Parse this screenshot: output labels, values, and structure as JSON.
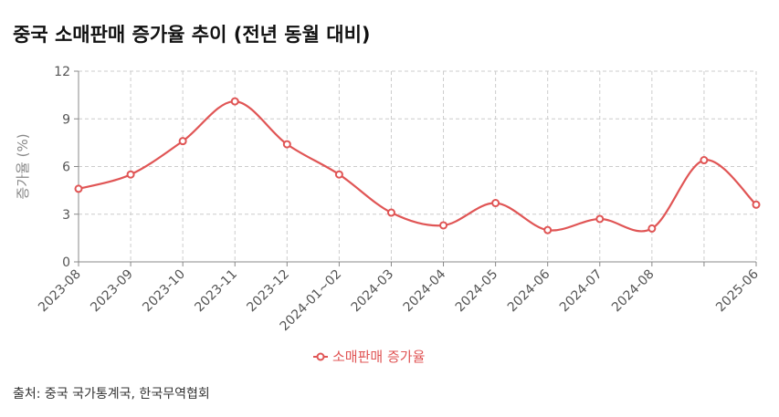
{
  "title": "중국 소매판매 증가율 추이 (전년 동월 대비)",
  "source": "출처: 중국 국가통계국, 한국무역협회",
  "colors": {
    "series": "#e05555",
    "grid": "#cccccc",
    "axis": "#888888"
  },
  "chart_data": {
    "type": "line",
    "title": "중국 소매판매 증가율 추이 (전년 동월 대비)",
    "xlabel": "",
    "ylabel": "증가율 (%)",
    "ylim": [
      0,
      12
    ],
    "yticks": [
      0,
      3,
      6,
      9,
      12
    ],
    "grid": true,
    "legend": "bottom-center",
    "categories": [
      "2023-08",
      "2023-09",
      "2023-10",
      "2023-11",
      "2023-12",
      "2024-01~02",
      "2024-03",
      "2024-04",
      "2024-05",
      "2024-06",
      "2024-07",
      "2024-08",
      "",
      "2025-06"
    ],
    "series": [
      {
        "name": "소매판매 증가율",
        "color": "#e05555",
        "values": [
          4.6,
          5.5,
          7.6,
          10.1,
          7.4,
          5.5,
          3.1,
          2.3,
          3.7,
          2.0,
          2.7,
          2.1,
          6.4,
          3.6
        ]
      }
    ]
  }
}
